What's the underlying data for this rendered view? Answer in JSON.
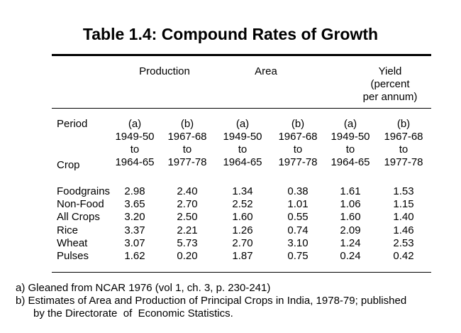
{
  "title": "Table 1.4: Compound Rates of Growth",
  "groups": {
    "production": "Production",
    "area": "Area",
    "yield": [
      "Yield",
      "(percent",
      "per annum)"
    ]
  },
  "labels": {
    "period": "Period",
    "crop": "Crop"
  },
  "column_headers": [
    [
      "(a)",
      "1949-50",
      "to",
      "1964-65"
    ],
    [
      "(b)",
      "1967-68",
      "to",
      "1977-78"
    ],
    [
      "(a)",
      "1949-50",
      "to",
      "1964-65"
    ],
    [
      "(b)",
      "1967-68",
      "to",
      "1977-78"
    ],
    [
      "(a)",
      "1949-50",
      "to",
      "1964-65"
    ],
    [
      "(b)",
      "1967-68",
      "to",
      "1977-78"
    ]
  ],
  "rows": [
    {
      "crop": "Foodgrains",
      "values": [
        "2.98",
        "2.40",
        "1.34",
        "0.38",
        "1.61",
        "1.53"
      ]
    },
    {
      "crop": "Non-Food",
      "values": [
        "3.65",
        "2.70",
        "2.52",
        "1.01",
        "1.06",
        "1.15"
      ]
    },
    {
      "crop": "All Crops",
      "values": [
        "3.20",
        "2.50",
        "1.60",
        "0.55",
        "1.60",
        "1.40"
      ]
    },
    {
      "crop": "Rice",
      "values": [
        "3.37",
        "2.21",
        "1.26",
        "0.74",
        "2.09",
        "1.46"
      ]
    },
    {
      "crop": "Wheat",
      "values": [
        "3.07",
        "5.73",
        "2.70",
        "3.10",
        "1.24",
        "2.53"
      ]
    },
    {
      "crop": "Pulses",
      "values": [
        "1.62",
        "0.20",
        "1.87",
        "0.75",
        "0.24",
        "0.42"
      ]
    }
  ],
  "notes": [
    "a)  Gleaned from NCAR 1976 (vol 1, ch. 3, p. 230-241)",
    "b)  Estimates of Area and Production of Principal Crops in India, 1978-79; published",
    "      by the Directorate  of  Economic Statistics."
  ]
}
